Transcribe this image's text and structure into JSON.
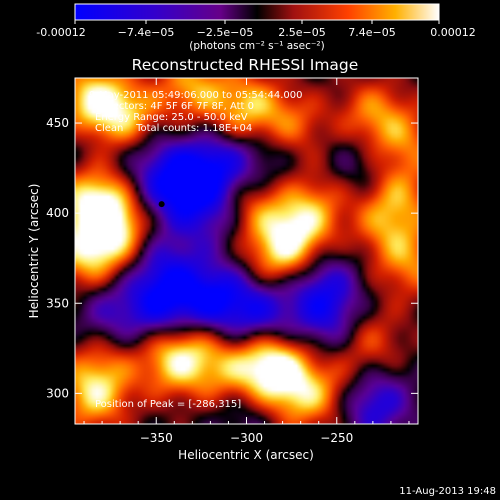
{
  "chart_data": {
    "type": "heatmap",
    "title": "Reconstructed RHESSI Image",
    "xlabel": "Heliocentric X (arcsec)",
    "ylabel": "Heliocentric Y (arcsec)",
    "x_ticks": [
      -350,
      -300,
      -250
    ],
    "y_ticks": [
      300,
      350,
      400,
      450
    ],
    "xlim": [
      -395,
      -205
    ],
    "ylim": [
      283,
      475
    ],
    "colorbar": {
      "ticks": [
        "-0.00012",
        "−7.4e−05",
        "−2.5e−05",
        "2.5e−05",
        "7.4e−05",
        "0.00012"
      ],
      "unit_line": "(photons cm⁻² s⁻¹ asec⁻²)",
      "range": [
        -0.00012,
        0.00012
      ]
    },
    "annotations": [
      "9-May-2011 05:49:06.000 to 05:54:44.000",
      "Detectors: 4F 5F 6F 7F 8F, Att 0",
      "Energy Range: 25.0 - 50.0 keV",
      "Clean    Total counts: 1.18E+04"
    ],
    "peak_label": "Position of Peak = [-286,315]",
    "peak": {
      "x": -286,
      "y": 315
    },
    "marker": {
      "x": -347,
      "y": 405
    },
    "blobs": [
      {
        "x": -385,
        "y": 462,
        "v": 1.0
      },
      {
        "x": -365,
        "y": 452,
        "v": 0.75
      },
      {
        "x": -330,
        "y": 470,
        "v": 0.7
      },
      {
        "x": -300,
        "y": 458,
        "v": 0.8
      },
      {
        "x": -275,
        "y": 448,
        "v": 0.55
      },
      {
        "x": -230,
        "y": 455,
        "v": 0.6
      },
      {
        "x": -212,
        "y": 440,
        "v": 0.5
      },
      {
        "x": -385,
        "y": 408,
        "v": 0.85
      },
      {
        "x": -375,
        "y": 392,
        "v": 1.0
      },
      {
        "x": -388,
        "y": 375,
        "v": 0.7
      },
      {
        "x": -300,
        "y": 405,
        "v": 0.55
      },
      {
        "x": -272,
        "y": 392,
        "v": 0.85
      },
      {
        "x": -282,
        "y": 375,
        "v": 0.7
      },
      {
        "x": -258,
        "y": 410,
        "v": 0.4
      },
      {
        "x": -210,
        "y": 372,
        "v": 0.6
      },
      {
        "x": -222,
        "y": 395,
        "v": 0.55
      },
      {
        "x": -215,
        "y": 412,
        "v": 0.45
      },
      {
        "x": -332,
        "y": 330,
        "v": 0.4
      },
      {
        "x": -340,
        "y": 318,
        "v": 0.8
      },
      {
        "x": -312,
        "y": 312,
        "v": 0.55
      },
      {
        "x": -286,
        "y": 315,
        "v": 1.2
      },
      {
        "x": -270,
        "y": 298,
        "v": 0.65
      },
      {
        "x": -385,
        "y": 298,
        "v": 0.75
      },
      {
        "x": -380,
        "y": 315,
        "v": 0.45
      },
      {
        "x": -232,
        "y": 328,
        "v": 0.5
      },
      {
        "x": -250,
        "y": 302,
        "v": 0.35
      },
      {
        "x": -355,
        "y": 435,
        "v": -0.35
      },
      {
        "x": -340,
        "y": 415,
        "v": -0.9
      },
      {
        "x": -318,
        "y": 425,
        "v": -0.85
      },
      {
        "x": -320,
        "y": 400,
        "v": -0.55
      },
      {
        "x": -290,
        "y": 432,
        "v": -0.4
      },
      {
        "x": -345,
        "y": 370,
        "v": -0.55
      },
      {
        "x": -318,
        "y": 352,
        "v": -0.9
      },
      {
        "x": -292,
        "y": 345,
        "v": -0.75
      },
      {
        "x": -345,
        "y": 348,
        "v": -0.85
      },
      {
        "x": -258,
        "y": 360,
        "v": -0.65
      },
      {
        "x": -255,
        "y": 340,
        "v": -0.55
      },
      {
        "x": -375,
        "y": 345,
        "v": -0.5
      },
      {
        "x": -230,
        "y": 295,
        "v": -0.8
      },
      {
        "x": -240,
        "y": 425,
        "v": -0.35
      },
      {
        "x": -300,
        "y": 290,
        "v": -0.3
      },
      {
        "x": -392,
        "y": 440,
        "v": -0.2
      }
    ]
  },
  "footer": {
    "date": "11-Aug-2013 19:48"
  }
}
